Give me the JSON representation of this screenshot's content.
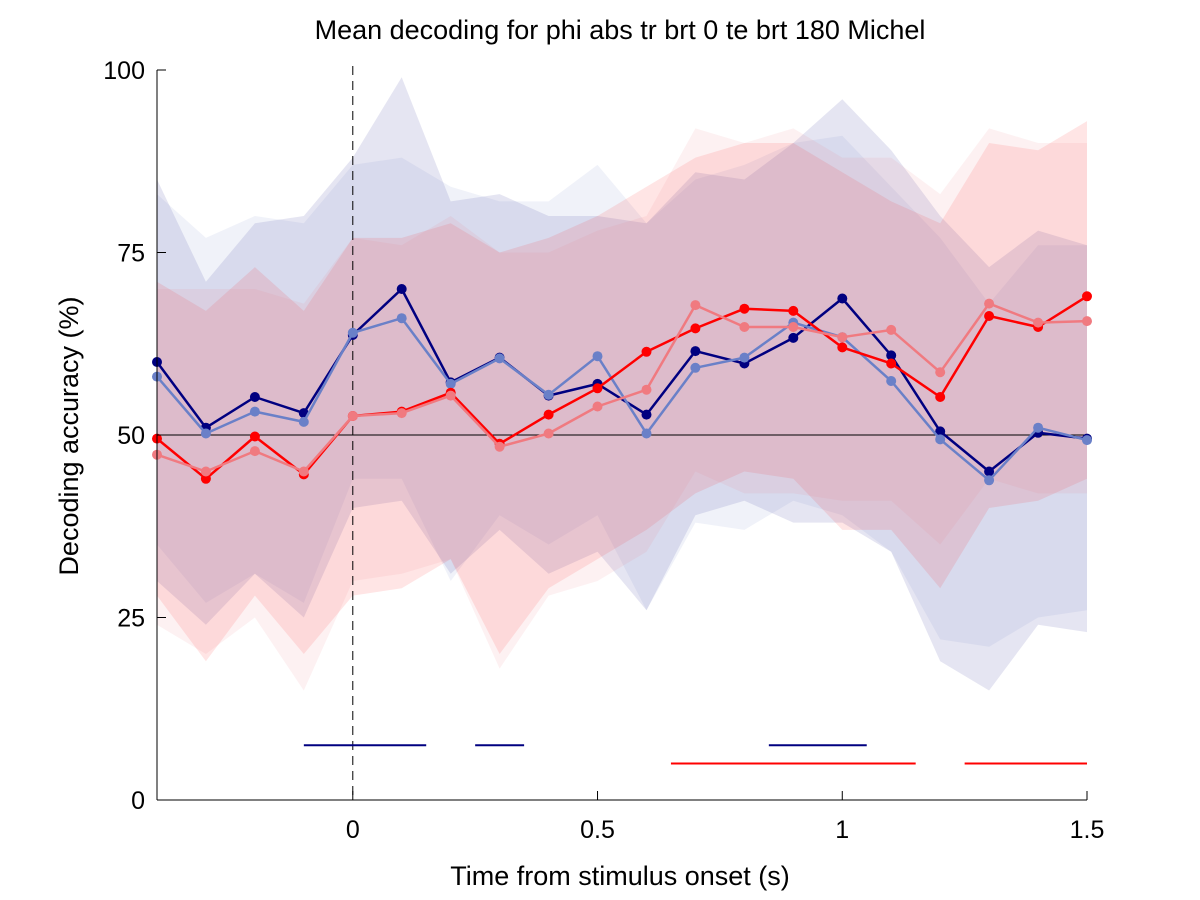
{
  "chart_data": {
    "type": "line",
    "title": "Mean decoding for phi abs tr brt 0 te brt 180  Michel",
    "xlabel": "Time from stimulus onset (s)",
    "ylabel": "Decoding accuracy (%)",
    "xlim": [
      -0.4,
      1.5
    ],
    "ylim": [
      0,
      100
    ],
    "xticks": [
      0,
      0.5,
      1,
      1.5
    ],
    "xtick_labels": [
      "0",
      "0.5",
      "1",
      "1.5"
    ],
    "yticks": [
      0,
      25,
      50,
      75,
      100
    ],
    "ytick_labels": [
      "0",
      "25",
      "50",
      "75",
      "100"
    ],
    "grid": false,
    "legend": "none",
    "chance_level": 50,
    "onset_marker_x": 0,
    "x": [
      -0.4,
      -0.3,
      -0.2,
      -0.1,
      0,
      0.1,
      0.2,
      0.3,
      0.4,
      0.5,
      0.6,
      0.7,
      0.8,
      0.9,
      1.0,
      1.1,
      1.2,
      1.3,
      1.4,
      1.5
    ],
    "series": [
      {
        "color": "#000080",
        "values": [
          60,
          51,
          55.2,
          53,
          63.7,
          70,
          57.2,
          60.6,
          55.4,
          57,
          52.8,
          61.5,
          59.8,
          63.3,
          68.7,
          60.9,
          50.5,
          45,
          50.3,
          49.5
        ],
        "band_lower": [
          30,
          24,
          31,
          25,
          40,
          41,
          31,
          37,
          31,
          34,
          26,
          39,
          41,
          38,
          38,
          34,
          19,
          15,
          24,
          23
        ],
        "band_upper": [
          85,
          71,
          79,
          80,
          88,
          99,
          82,
          83,
          80,
          80,
          79,
          86,
          85,
          90,
          96,
          89,
          80,
          73,
          78,
          76
        ]
      },
      {
        "color": "#6a80c8",
        "values": [
          58,
          50.2,
          53.2,
          51.8,
          64,
          66,
          57,
          60.5,
          55.5,
          60.8,
          50.2,
          59.2,
          60.6,
          65.4,
          63.4,
          57.4,
          49.4,
          43.8,
          51,
          49.3
        ],
        "band_lower": [
          35,
          27,
          31,
          27,
          44,
          44,
          30,
          39,
          35,
          39,
          26,
          38,
          37,
          41,
          39,
          34,
          22,
          21,
          25,
          26
        ],
        "band_upper": [
          83,
          77,
          80,
          79,
          87,
          88,
          84,
          82,
          82,
          87,
          79,
          85,
          87,
          90,
          91,
          84,
          77,
          68,
          76,
          76
        ]
      },
      {
        "color": "#ff0000",
        "values": [
          49.5,
          44,
          49.8,
          44.6,
          52.6,
          53.2,
          55.8,
          48.8,
          52.8,
          56.4,
          61.4,
          64.6,
          67.3,
          67,
          62,
          59.8,
          55.2,
          66.3,
          64.8,
          69
        ],
        "band_lower": [
          28,
          19,
          28,
          20,
          28,
          29,
          33,
          20,
          29,
          33,
          37,
          42,
          45,
          44,
          37,
          37,
          29,
          40,
          41,
          44
        ],
        "band_upper": [
          71,
          67,
          73,
          67,
          77,
          77,
          79,
          75,
          77,
          80,
          84,
          88,
          90,
          90,
          86,
          82,
          79,
          90,
          89,
          93
        ]
      },
      {
        "color": "#f07a80",
        "values": [
          47.3,
          45,
          47.8,
          45,
          52.6,
          53,
          55.4,
          48.4,
          50.2,
          53.9,
          56.2,
          67.8,
          64.8,
          64.8,
          63.4,
          64.4,
          58.6,
          68,
          65.4,
          65.6
        ],
        "band_lower": [
          24,
          20,
          25,
          15,
          30,
          31,
          33,
          18,
          28,
          30,
          34,
          45,
          42,
          42,
          41,
          41,
          35,
          44,
          42,
          42
        ],
        "band_upper": [
          70,
          70,
          70,
          68,
          77,
          76,
          80,
          75,
          75,
          78,
          80,
          92,
          90,
          92,
          88,
          88,
          83,
          92,
          90,
          90
        ]
      }
    ],
    "significance_bars": [
      {
        "color": "#000080",
        "y": 7.5,
        "x_start": -0.1,
        "x_end": 0.15
      },
      {
        "color": "#000080",
        "y": 7.5,
        "x_start": 0.25,
        "x_end": 0.35
      },
      {
        "color": "#000080",
        "y": 7.5,
        "x_start": 0.85,
        "x_end": 1.05
      },
      {
        "color": "#ff0000",
        "y": 5,
        "x_start": 0.65,
        "x_end": 1.15
      },
      {
        "color": "#ff0000",
        "y": 5,
        "x_start": 1.25,
        "x_end": 1.5
      }
    ]
  }
}
